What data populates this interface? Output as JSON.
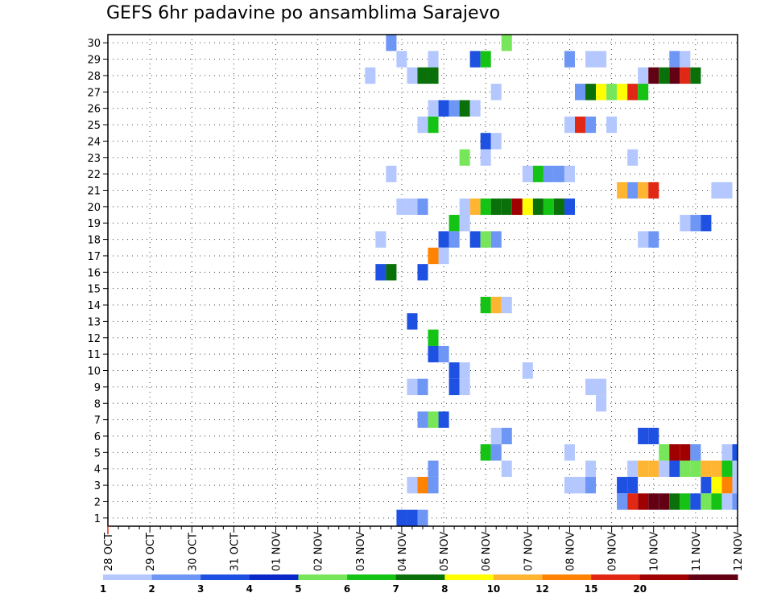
{
  "title": "GEFS 6hr padavine po ansamblima Sarajevo",
  "colors": [
    "#b4c8ff",
    "#6e96f5",
    "#1e50e1",
    "#0a28c8",
    "#78e65a",
    "#14c314",
    "#0a700a",
    "#ffff00",
    "#ffb432",
    "#ff8200",
    "#e12814",
    "#a00000",
    "#640014"
  ],
  "chart_data": {
    "type": "heatmap",
    "title": "GEFS 6hr padavine po ansamblima Sarajevo",
    "xlabel": "",
    "ylabel": "",
    "x_tick_labels": [
      "28 OCT",
      "29 OCT",
      "30 OCT",
      "31 OCT",
      "01 NOV",
      "02 NOV",
      "03 NOV",
      "04 NOV",
      "05 NOV",
      "06 NOV",
      "07 NOV",
      "08 NOV",
      "09 NOV",
      "10 NOV",
      "11 NOV",
      "12 NOV"
    ],
    "y_tick_labels": [
      "1",
      "2",
      "3",
      "4",
      "5",
      "6",
      "7",
      "8",
      "9",
      "10",
      "11",
      "12",
      "13",
      "14",
      "15",
      "16",
      "17",
      "18",
      "19",
      "20",
      "21",
      "22",
      "23",
      "24",
      "25",
      "26",
      "27",
      "28",
      "29",
      "30"
    ],
    "xlim": [
      0,
      60
    ],
    "ylim": [
      0.5,
      30.5
    ],
    "x_unit": "6-hour steps from 28 OCT 00Z",
    "y_meaning": "ensemble member",
    "grid": true,
    "colorbar": {
      "bounds": [
        1,
        2,
        3,
        4,
        5,
        6,
        7,
        8,
        10,
        12,
        15,
        20
      ],
      "labels": [
        "1",
        "2",
        "3",
        "4",
        "5",
        "6",
        "7",
        "8",
        "10",
        "12",
        "15",
        "20"
      ],
      "colors_index": [
        0,
        1,
        2,
        3,
        4,
        5,
        6,
        7,
        8,
        9,
        10,
        11,
        12
      ]
    },
    "cells_note": "each cell: [member, step, color_index]",
    "cells": [
      [
        30,
        27,
        1
      ],
      [
        30,
        38,
        4
      ],
      [
        29,
        28,
        0
      ],
      [
        29,
        31,
        0
      ],
      [
        29,
        35,
        2
      ],
      [
        29,
        36,
        5
      ],
      [
        29,
        44,
        1
      ],
      [
        29,
        46,
        0
      ],
      [
        29,
        47,
        0
      ],
      [
        29,
        54,
        1
      ],
      [
        29,
        55,
        0
      ],
      [
        28,
        25,
        0
      ],
      [
        28,
        29,
        0
      ],
      [
        28,
        30,
        6
      ],
      [
        28,
        31,
        6
      ],
      [
        28,
        51,
        0
      ],
      [
        28,
        52,
        12
      ],
      [
        28,
        53,
        6
      ],
      [
        28,
        54,
        12
      ],
      [
        28,
        55,
        10
      ],
      [
        28,
        56,
        6
      ],
      [
        27,
        37,
        0
      ],
      [
        27,
        45,
        1
      ],
      [
        27,
        46,
        6
      ],
      [
        27,
        47,
        7
      ],
      [
        27,
        48,
        4
      ],
      [
        27,
        49,
        7
      ],
      [
        27,
        50,
        10
      ],
      [
        27,
        51,
        5
      ],
      [
        26,
        31,
        0
      ],
      [
        26,
        32,
        2
      ],
      [
        26,
        33,
        1
      ],
      [
        26,
        34,
        6
      ],
      [
        26,
        35,
        0
      ],
      [
        25,
        30,
        0
      ],
      [
        25,
        31,
        5
      ],
      [
        25,
        44,
        0
      ],
      [
        25,
        45,
        10
      ],
      [
        25,
        46,
        1
      ],
      [
        25,
        48,
        0
      ],
      [
        24,
        36,
        2
      ],
      [
        24,
        37,
        0
      ],
      [
        23,
        34,
        4
      ],
      [
        23,
        36,
        0
      ],
      [
        23,
        50,
        0
      ],
      [
        22,
        27,
        0
      ],
      [
        22,
        40,
        0
      ],
      [
        22,
        41,
        5
      ],
      [
        22,
        42,
        1
      ],
      [
        22,
        43,
        1
      ],
      [
        22,
        44,
        0
      ],
      [
        21,
        49,
        8
      ],
      [
        21,
        50,
        1
      ],
      [
        21,
        51,
        8
      ],
      [
        21,
        52,
        10
      ],
      [
        21,
        58,
        0
      ],
      [
        21,
        59,
        0
      ],
      [
        20,
        28,
        0
      ],
      [
        20,
        29,
        0
      ],
      [
        20,
        30,
        1
      ],
      [
        20,
        34,
        0
      ],
      [
        20,
        35,
        8
      ],
      [
        20,
        36,
        5
      ],
      [
        20,
        37,
        6
      ],
      [
        20,
        38,
        6
      ],
      [
        20,
        39,
        11
      ],
      [
        20,
        40,
        7
      ],
      [
        20,
        41,
        6
      ],
      [
        20,
        42,
        5
      ],
      [
        20,
        43,
        6
      ],
      [
        20,
        44,
        2
      ],
      [
        19,
        33,
        5
      ],
      [
        19,
        34,
        0
      ],
      [
        19,
        55,
        0
      ],
      [
        19,
        56,
        1
      ],
      [
        19,
        57,
        2
      ],
      [
        18,
        26,
        0
      ],
      [
        18,
        32,
        2
      ],
      [
        18,
        33,
        1
      ],
      [
        18,
        35,
        2
      ],
      [
        18,
        36,
        4
      ],
      [
        18,
        37,
        1
      ],
      [
        18,
        51,
        0
      ],
      [
        18,
        52,
        1
      ],
      [
        17,
        31,
        9
      ],
      [
        17,
        32,
        0
      ],
      [
        16,
        26,
        2
      ],
      [
        16,
        27,
        6
      ],
      [
        16,
        30,
        2
      ],
      [
        14,
        36,
        5
      ],
      [
        14,
        37,
        8
      ],
      [
        14,
        38,
        0
      ],
      [
        13,
        29,
        2
      ],
      [
        12,
        31,
        5
      ],
      [
        11,
        31,
        2
      ],
      [
        11,
        32,
        1
      ],
      [
        10,
        33,
        2
      ],
      [
        10,
        34,
        0
      ],
      [
        10,
        40,
        0
      ],
      [
        9,
        29,
        0
      ],
      [
        9,
        30,
        1
      ],
      [
        9,
        33,
        2
      ],
      [
        9,
        34,
        0
      ],
      [
        9,
        46,
        0
      ],
      [
        9,
        47,
        0
      ],
      [
        8,
        47,
        0
      ],
      [
        7,
        30,
        1
      ],
      [
        7,
        31,
        4
      ],
      [
        7,
        32,
        2
      ],
      [
        6,
        37,
        0
      ],
      [
        6,
        38,
        1
      ],
      [
        6,
        51,
        2
      ],
      [
        6,
        52,
        2
      ],
      [
        5,
        36,
        5
      ],
      [
        5,
        37,
        1
      ],
      [
        5,
        44,
        0
      ],
      [
        5,
        53,
        4
      ],
      [
        5,
        54,
        11
      ],
      [
        5,
        55,
        11
      ],
      [
        5,
        56,
        1
      ],
      [
        5,
        59,
        0
      ],
      [
        5,
        60,
        2
      ],
      [
        4,
        31,
        1
      ],
      [
        4,
        38,
        0
      ],
      [
        4,
        46,
        0
      ],
      [
        4,
        50,
        0
      ],
      [
        4,
        51,
        8
      ],
      [
        4,
        52,
        8
      ],
      [
        4,
        53,
        0
      ],
      [
        4,
        54,
        2
      ],
      [
        4,
        55,
        4
      ],
      [
        4,
        56,
        4
      ],
      [
        4,
        57,
        8
      ],
      [
        4,
        58,
        8
      ],
      [
        4,
        59,
        5
      ],
      [
        4,
        60,
        0
      ],
      [
        3,
        29,
        0
      ],
      [
        3,
        30,
        9
      ],
      [
        3,
        31,
        1
      ],
      [
        3,
        44,
        0
      ],
      [
        3,
        45,
        0
      ],
      [
        3,
        46,
        1
      ],
      [
        3,
        49,
        2
      ],
      [
        3,
        50,
        2
      ],
      [
        3,
        57,
        2
      ],
      [
        3,
        58,
        7
      ],
      [
        3,
        59,
        9
      ],
      [
        3,
        60,
        0
      ],
      [
        3,
        61,
        9
      ],
      [
        2,
        49,
        1
      ],
      [
        2,
        50,
        10
      ],
      [
        2,
        51,
        11
      ],
      [
        2,
        52,
        12
      ],
      [
        2,
        53,
        12
      ],
      [
        2,
        54,
        6
      ],
      [
        2,
        55,
        5
      ],
      [
        2,
        56,
        2
      ],
      [
        2,
        57,
        4
      ],
      [
        2,
        58,
        5
      ],
      [
        2,
        59,
        0
      ],
      [
        2,
        60,
        1
      ],
      [
        1,
        28,
        2
      ],
      [
        1,
        29,
        2
      ],
      [
        1,
        30,
        1
      ]
    ]
  }
}
